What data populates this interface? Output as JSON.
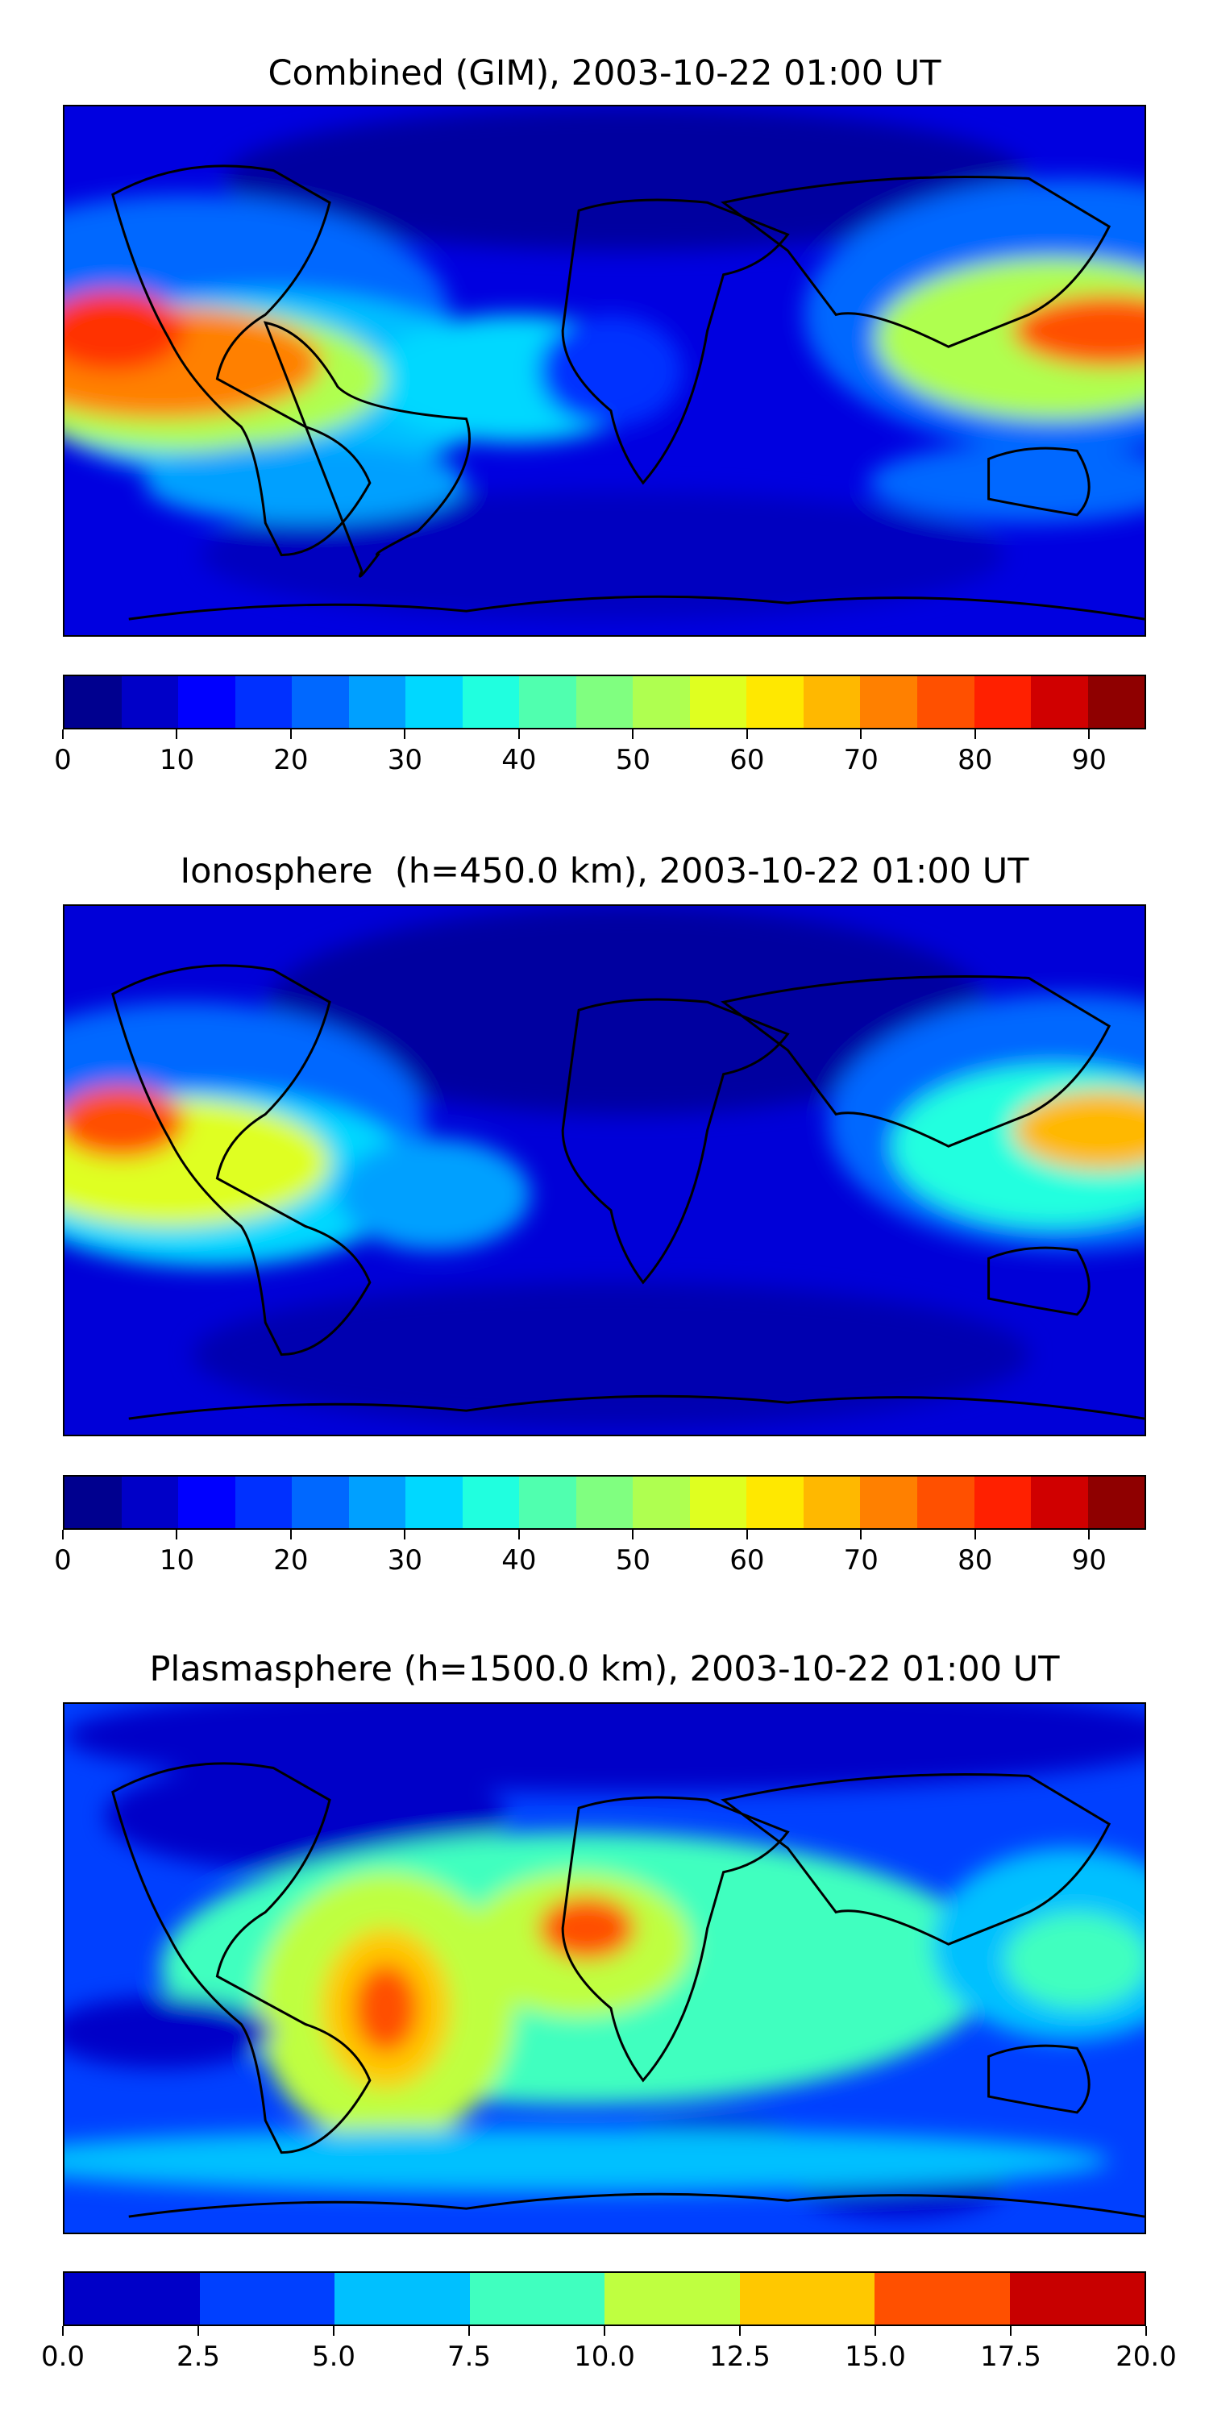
{
  "panels": [
    {
      "title": "Combined (GIM), 2003-10-22 01:00 UT",
      "colorbar": {
        "min": 0,
        "max": 95,
        "tick_labels": [
          "0",
          "10",
          "20",
          "30",
          "40",
          "50",
          "60",
          "70",
          "80",
          "90"
        ],
        "tick_values": [
          0,
          10,
          20,
          30,
          40,
          50,
          60,
          70,
          80,
          90
        ],
        "colors": [
          "#00008f",
          "#0000c8",
          "#0000ff",
          "#0030ff",
          "#0068ff",
          "#00a0ff",
          "#00d8ff",
          "#20ffdf",
          "#50ffaf",
          "#80ff80",
          "#afff50",
          "#dfff20",
          "#ffe800",
          "#ffb800",
          "#ff8000",
          "#ff5000",
          "#ff2000",
          "#d00000",
          "#8f0000"
        ]
      }
    },
    {
      "title": "Ionosphere  (h=450.0 km), 2003-10-22 01:00 UT",
      "colorbar": {
        "min": 0,
        "max": 95,
        "tick_labels": [
          "0",
          "10",
          "20",
          "30",
          "40",
          "50",
          "60",
          "70",
          "80",
          "90"
        ],
        "tick_values": [
          0,
          10,
          20,
          30,
          40,
          50,
          60,
          70,
          80,
          90
        ],
        "colors": [
          "#00008f",
          "#0000c8",
          "#0000ff",
          "#0030ff",
          "#0068ff",
          "#00a0ff",
          "#00d8ff",
          "#20ffdf",
          "#50ffaf",
          "#80ff80",
          "#afff50",
          "#dfff20",
          "#ffe800",
          "#ffb800",
          "#ff8000",
          "#ff5000",
          "#ff2000",
          "#d00000",
          "#8f0000"
        ]
      }
    },
    {
      "title": "Plasmasphere (h=1500.0 km), 2003-10-22 01:00 UT",
      "colorbar": {
        "min": 0,
        "max": 20,
        "tick_labels": [
          "0.0",
          "2.5",
          "5.0",
          "7.5",
          "10.0",
          "12.5",
          "15.0",
          "17.5",
          "20.0"
        ],
        "tick_values": [
          0,
          2.5,
          5,
          7.5,
          10,
          12.5,
          15,
          17.5,
          20
        ],
        "colors": [
          "#0000c8",
          "#0040ff",
          "#00c0ff",
          "#40ffbf",
          "#bfff40",
          "#ffc800",
          "#ff5000",
          "#c80000"
        ]
      }
    }
  ]
}
